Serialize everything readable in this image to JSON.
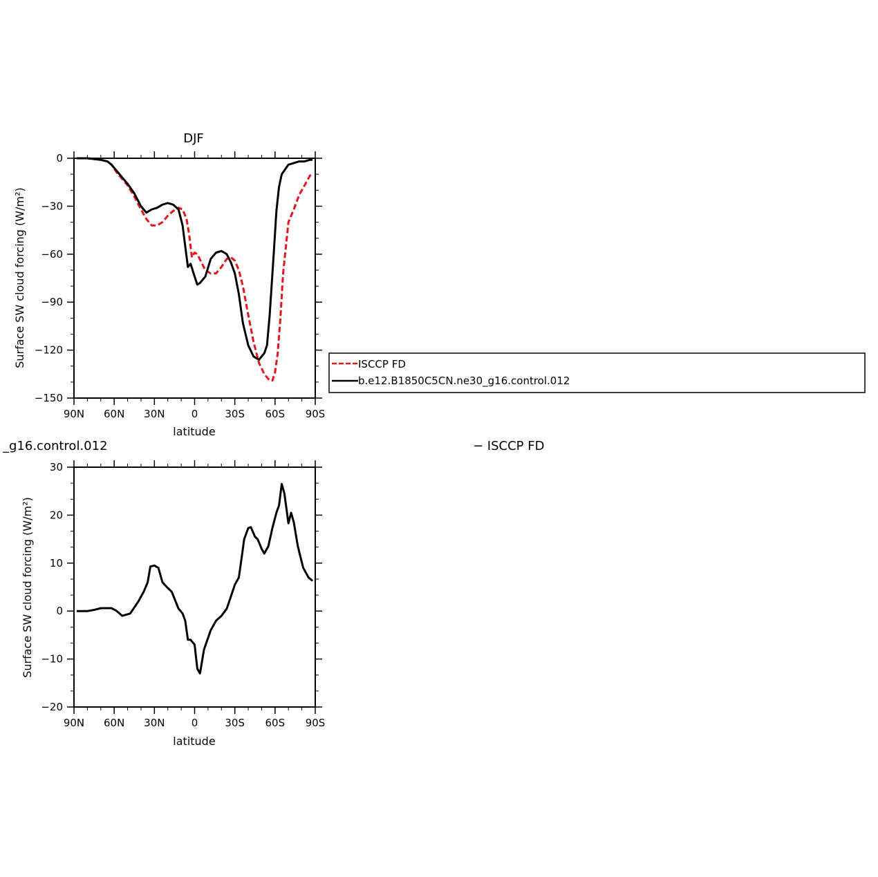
{
  "chart_data": [
    {
      "type": "line",
      "title": "DJF",
      "xlabel": "latitude",
      "ylabel": "Surface SW cloud forcing (W/m²)",
      "x_ticks": [
        "90N",
        "60N",
        "30N",
        "0",
        "30S",
        "60S",
        "90S"
      ],
      "x_tick_values": [
        90,
        60,
        30,
        0,
        -30,
        -60,
        -90
      ],
      "y_ticks": [
        "0",
        "−30",
        "−60",
        "−90",
        "−120",
        "−150"
      ],
      "y_tick_values": [
        0,
        -30,
        -60,
        -90,
        -120,
        -150
      ],
      "xlim": [
        90,
        -90
      ],
      "ylim": [
        -150,
        0
      ],
      "legend": {
        "position": "right",
        "entries": [
          "ISCCP FD",
          "b.e12.B1850C5CN.ne30_g16.control.012"
        ]
      },
      "series": [
        {
          "name": "ISCCP FD",
          "color": "#e8141b",
          "dash": "dashed",
          "x": [
            88,
            80,
            70,
            65,
            62,
            58,
            54,
            50,
            45,
            40,
            36,
            32,
            28,
            24,
            20,
            16,
            12,
            9,
            6,
            4,
            2,
            0,
            -2,
            -5,
            -8,
            -12,
            -16,
            -20,
            -24,
            -27,
            -30,
            -33,
            -36,
            -40,
            -44,
            -48,
            -52,
            -56,
            -58,
            -60,
            -62,
            -64,
            -66,
            -70,
            -74,
            -78,
            -82,
            -86,
            -88
          ],
          "y": [
            0,
            0,
            -1,
            -2,
            -4,
            -9,
            -13,
            -17,
            -24,
            -32,
            -38,
            -42,
            -42,
            -40,
            -36,
            -33,
            -31,
            -32,
            -38,
            -48,
            -62,
            -59,
            -60,
            -65,
            -70,
            -72,
            -72,
            -68,
            -63,
            -62,
            -64,
            -70,
            -80,
            -98,
            -115,
            -128,
            -135,
            -139,
            -139,
            -134,
            -122,
            -100,
            -72,
            -40,
            -32,
            -23,
            -17,
            -11,
            -9
          ]
        },
        {
          "name": "b.e12.B1850C5CN.ne30_g16.control.012",
          "color": "#000000",
          "dash": "solid",
          "x": [
            88,
            80,
            70,
            65,
            62,
            58,
            54,
            50,
            45,
            40,
            36,
            32,
            28,
            24,
            20,
            16,
            12,
            9,
            7,
            5,
            3,
            0,
            -2,
            -4,
            -8,
            -12,
            -16,
            -20,
            -24,
            -27,
            -30,
            -33,
            -36,
            -40,
            -44,
            -48,
            -52,
            -54,
            -56,
            -59,
            -61,
            -63,
            -65,
            -70,
            -74,
            -78,
            -82,
            -86,
            -88
          ],
          "y": [
            0,
            0,
            -1,
            -2,
            -4,
            -8,
            -12,
            -16,
            -22,
            -30,
            -34,
            -32,
            -31,
            -29,
            -28,
            -29,
            -32,
            -42,
            -55,
            -68,
            -66,
            -74,
            -79,
            -78,
            -74,
            -63,
            -59,
            -58,
            -60,
            -65,
            -72,
            -85,
            -103,
            -117,
            -124,
            -126,
            -122,
            -117,
            -98,
            -60,
            -33,
            -18,
            -10,
            -4,
            -3,
            -2,
            -2,
            -1,
            -1
          ]
        }
      ]
    },
    {
      "type": "line",
      "title": "_g16.control.012",
      "right_title": "− ISCCP FD",
      "xlabel": "latitude",
      "ylabel": "Surface SW cloud forcing (W/m²)",
      "x_ticks": [
        "90N",
        "60N",
        "30N",
        "0",
        "30S",
        "60S",
        "90S"
      ],
      "x_tick_values": [
        90,
        60,
        30,
        0,
        -30,
        -60,
        -90
      ],
      "y_ticks": [
        "30",
        "20",
        "10",
        "0",
        "−10",
        "−20"
      ],
      "y_tick_values": [
        30,
        20,
        10,
        0,
        -10,
        -20
      ],
      "xlim": [
        90,
        -90
      ],
      "ylim": [
        -20,
        30
      ],
      "series": [
        {
          "name": "",
          "color": "#000000",
          "dash": "solid",
          "x": [
            88,
            80,
            74,
            70,
            66,
            62,
            58,
            54,
            48,
            42,
            38,
            35,
            33,
            30,
            27,
            24,
            20,
            17,
            12,
            9,
            7,
            5,
            3,
            0,
            -2,
            -4,
            -7,
            -12,
            -16,
            -20,
            -24,
            -27,
            -30,
            -33,
            -35,
            -37,
            -40,
            -42,
            -45,
            -47,
            -50,
            -52,
            -55,
            -58,
            -61,
            -63,
            -65,
            -67,
            -70,
            -72,
            -74,
            -77,
            -81,
            -85,
            -88
          ],
          "y": [
            0,
            0,
            0.3,
            0.6,
            0.6,
            0.6,
            0,
            -1,
            -0.5,
            2,
            4,
            6,
            9.3,
            9.5,
            9,
            6,
            4.8,
            4,
            0.5,
            -0.5,
            -2,
            -6,
            -6,
            -7,
            -12,
            -13,
            -8,
            -4,
            -2,
            -1,
            0.5,
            3,
            5.5,
            7,
            11,
            15,
            17.3,
            17.5,
            15.5,
            15,
            13,
            12,
            13.5,
            17.3,
            20.5,
            22,
            26.5,
            24.5,
            18.3,
            20.5,
            18.5,
            13.5,
            9,
            7,
            6.3
          ]
        }
      ]
    }
  ]
}
